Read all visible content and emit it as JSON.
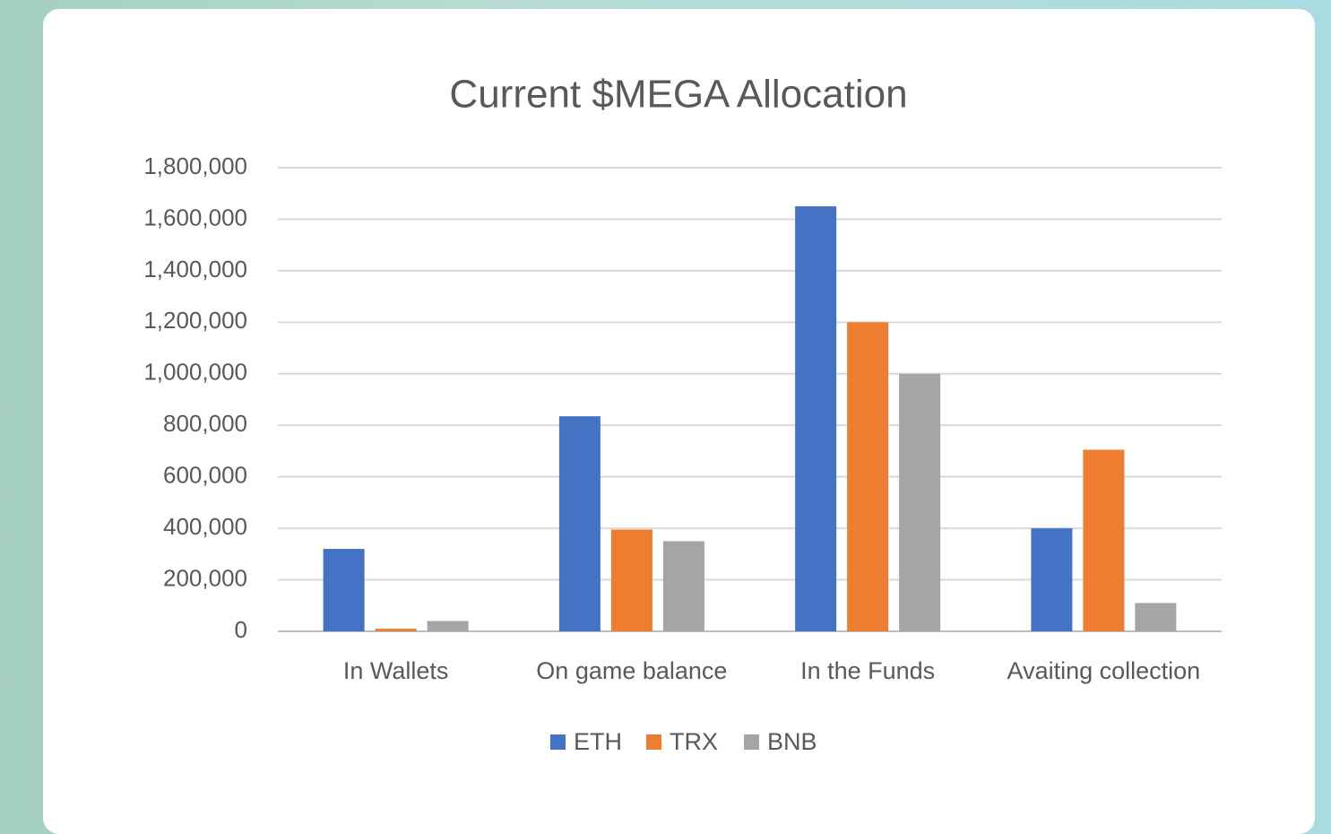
{
  "chart_data": {
    "type": "bar",
    "title": "Current $MEGA Allocation",
    "categories": [
      "In Wallets",
      "On game balance",
      "In the Funds",
      "Avaiting collection"
    ],
    "series": [
      {
        "name": "ETH",
        "color": "#4472c4",
        "values": [
          320000,
          835000,
          1650000,
          400000
        ]
      },
      {
        "name": "TRX",
        "color": "#ed7d31",
        "values": [
          10000,
          395000,
          1200000,
          705000
        ]
      },
      {
        "name": "BNB",
        "color": "#a5a5a5",
        "values": [
          40000,
          350000,
          1000000,
          110000
        ]
      }
    ],
    "ylim": [
      0,
      1800000
    ],
    "yticks": [
      0,
      {
        "value": 200000,
        "label": "200,000"
      },
      {
        "value": 400000,
        "label": "400,000"
      },
      {
        "value": 600000,
        "label": "600,000"
      },
      {
        "value": 800000,
        "label": "800,000"
      },
      {
        "value": 1000000,
        "label": "1,000,000"
      },
      {
        "value": 1200000,
        "label": "1,200,000"
      },
      {
        "value": 1400000,
        "label": "1,400,000"
      },
      {
        "value": 1600000,
        "label": "1,600,000"
      },
      {
        "value": 1800000,
        "label": "1,800,000"
      }
    ],
    "grid": true,
    "legend": "bottom"
  }
}
